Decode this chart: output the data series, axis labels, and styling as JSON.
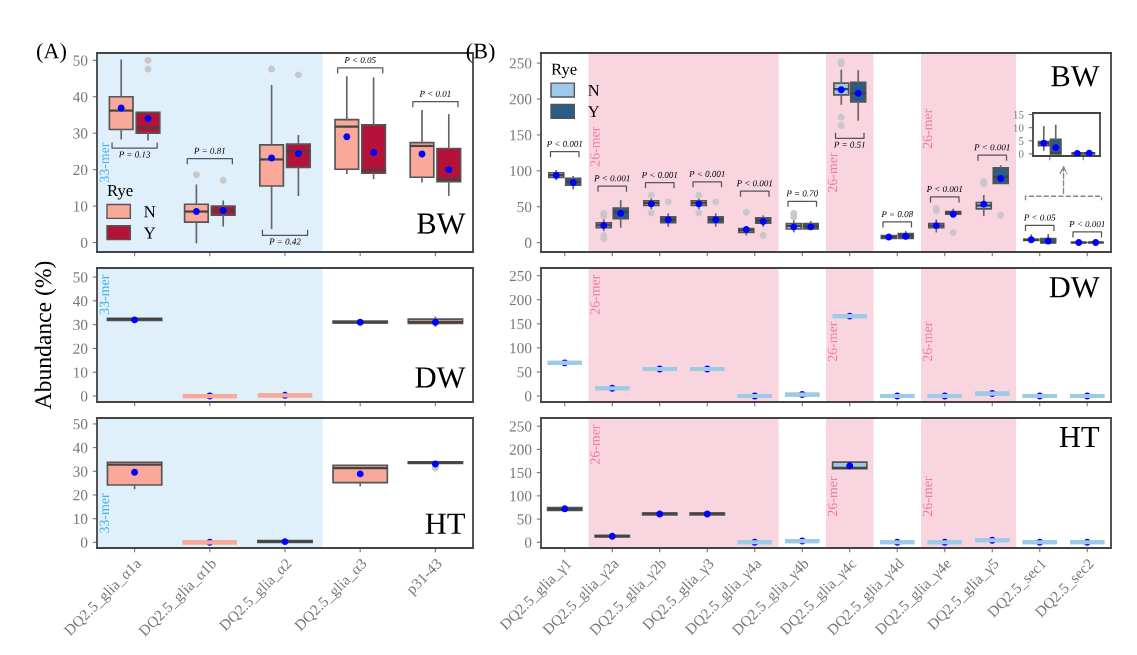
{
  "chart_data": [
    {
      "type": "box",
      "title": "BW",
      "annotations": [
        "(A)",
        "P = 0.13",
        "P = 0.81",
        "P = 0.42",
        "P < 0.05",
        "P < 0.01"
      ],
      "categories": [
        "DQ2.5_glia_α1a",
        "DQ2.5_glia_α1b",
        "DQ2.5_glia_α2",
        "DQ2.5_glia_α3",
        "p31-43"
      ],
      "ylim": [
        -2.6,
        52
      ],
      "yticks": [
        0,
        10,
        20,
        30,
        40,
        50
      ],
      "tick_labels": "y",
      "legend": "bottom left",
      "legend_title": "Rye",
      "bands": [
        {
          "axis": "x",
          "from": "DQ2.5_glia_α1a",
          "to": "DQ2.5_glia_α2",
          "label": "33-mer",
          "color": "#dff0fa"
        }
      ],
      "series": [
        {
          "name": "N",
          "color": "#f9a99a",
          "boxes": [
            {
              "low": 28.5,
              "q1": 31,
              "median": 36.2,
              "q3": 40,
              "high": 50,
              "mean": 36.9
            },
            {
              "low": 0,
              "q1": 5.6,
              "median": 8.5,
              "q3": 10.5,
              "high": 15.7,
              "mean": 8.5,
              "outliers": [
                18.6
              ]
            },
            {
              "low": 3.9,
              "q1": 15.5,
              "median": 22.8,
              "q3": 26.8,
              "high": 43,
              "mean": 23.2,
              "outliers": [
                47.6
              ]
            },
            {
              "low": 19,
              "q1": 20.1,
              "median": 31.8,
              "q3": 33.7,
              "high": 45.4,
              "mean": 29
            },
            {
              "low": 16.7,
              "q1": 17.9,
              "median": 26.5,
              "q3": 27.4,
              "high": 36.1,
              "mean": 24.3
            }
          ]
        },
        {
          "name": "Y",
          "color": "#b5123a",
          "boxes": [
            {
              "low": 28.2,
              "q1": 30,
              "median": 31.5,
              "q3": 35.7,
              "high": 35.7,
              "mean": 34,
              "outliers": [
                50,
                47.6
              ]
            },
            {
              "low": 4.6,
              "q1": 7.5,
              "median": 8.8,
              "q3": 10,
              "high": 11.3,
              "mean": 8.8,
              "outliers": [
                17.1
              ]
            },
            {
              "low": 13,
              "q1": 20.6,
              "median": 25,
              "q3": 27,
              "high": 29.3,
              "mean": 24.4,
              "outliers": [
                46
              ]
            },
            {
              "low": 17.6,
              "q1": 19,
              "median": 19.9,
              "q3": 32.3,
              "high": 45.1,
              "mean": 24.7
            },
            {
              "low": 13,
              "q1": 16.7,
              "median": 17.3,
              "q3": 25.8,
              "high": 35,
              "mean": 20
            }
          ]
        }
      ]
    },
    {
      "type": "box",
      "title": "DW",
      "ylabel": "Abundance (%)",
      "categories": [
        "DQ2.5_glia_α1a",
        "DQ2.5_glia_α1b",
        "DQ2.5_glia_α2",
        "DQ2.5_glia_α3",
        "p31-43"
      ],
      "ylim": [
        -2.5,
        53.8
      ],
      "yticks": [
        0,
        10,
        20,
        30,
        40,
        50
      ],
      "tick_labels": "y",
      "bands": [
        {
          "axis": "x",
          "from": "DQ2.5_glia_α1a",
          "to": "DQ2.5_glia_α2",
          "label": "33-mer",
          "color": "#dff0fa"
        }
      ],
      "series": [
        {
          "color": "#f9a99a",
          "boxes": [
            {
              "low": 31.8,
              "q1": 31.8,
              "median": 32.3,
              "q3": 32.6,
              "high": 32.6,
              "mean": 32
            },
            {
              "low": 0,
              "q1": 0,
              "median": 0,
              "q3": 0,
              "high": 0,
              "mean": 0
            },
            {
              "low": 0.3,
              "q1": 0.3,
              "median": 0.3,
              "q3": 0.3,
              "high": 0.3,
              "mean": 0.3
            },
            {
              "low": 30.7,
              "q1": 30.7,
              "median": 31,
              "q3": 31.5,
              "high": 31.5,
              "mean": 31
            },
            {
              "low": 29.5,
              "q1": 30.5,
              "median": 31.2,
              "q3": 32.3,
              "high": 33,
              "mean": 31
            }
          ]
        }
      ]
    },
    {
      "type": "box",
      "title": "HT",
      "categories": [
        "DQ2.5_glia_α1a",
        "DQ2.5_glia_α1b",
        "DQ2.5_glia_α2",
        "DQ2.5_glia_α3",
        "p31-43"
      ],
      "ylim": [
        -2.4,
        52.5
      ],
      "yticks": [
        0,
        10,
        20,
        30,
        40,
        50
      ],
      "bands": [
        {
          "axis": "x",
          "from": "DQ2.5_glia_α1a",
          "to": "DQ2.5_glia_α2",
          "label": "33-mer",
          "color": "#dff0fa"
        }
      ],
      "series": [
        {
          "color": "#f9a99a",
          "boxes": [
            {
              "low": 22.8,
              "q1": 24.2,
              "median": 32.8,
              "q3": 33.8,
              "high": 33.8,
              "mean": 29.6
            },
            {
              "low": 0,
              "q1": 0,
              "median": 0,
              "q3": 0,
              "high": 0,
              "mean": 0
            },
            {
              "low": 0,
              "q1": 0,
              "median": 0.4,
              "q3": 0.7,
              "high": 0.7,
              "mean": 0.3
            },
            {
              "low": 24,
              "q1": 25.2,
              "median": 31.3,
              "q3": 32.5,
              "high": 32.5,
              "mean": 28.9
            },
            {
              "low": 33.3,
              "q1": 33.3,
              "median": 33.7,
              "q3": 34,
              "high": 34,
              "mean": 33.1,
              "outliers": [
                31.4
              ]
            }
          ]
        }
      ]
    },
    {
      "type": "box",
      "title": "BW",
      "annotations": [
        "(B)",
        "P < 0.001",
        "P < 0.001",
        "P < 0.001",
        "P < 0.001",
        "P < 0.001",
        "P = 0.70",
        "P = 0.51",
        "P = 0.08",
        "P < 0.001",
        "P < 0.001",
        "P < 0.05",
        "P < 0.001"
      ],
      "categories": [
        "DQ2.5_glia_γ1",
        "DQ2.5_glia_γ2a",
        "DQ2.5_glia_γ2b",
        "DQ2.5_glia_γ3",
        "DQ2.5_glia_γ4a",
        "DQ2.5_glia_γ4b",
        "DQ2.5_glia_γ4c",
        "DQ2.5_glia_γ4d",
        "DQ2.5_glia_γ4e",
        "DQ2.5_glia_γ5",
        "DQ2.5_sec1",
        "DQ2.5_sec2"
      ],
      "ylim": [
        -13,
        264
      ],
      "yticks": [
        0,
        50,
        100,
        150,
        200,
        250
      ],
      "tick_labels": "y",
      "legend": "top left",
      "legend_title": "Rye",
      "bands": [
        {
          "axis": "x",
          "from": "DQ2.5_glia_γ2a",
          "to": "DQ2.5_glia_γ4a",
          "label": "26-mer",
          "color": "#f9d5e0"
        },
        {
          "axis": "x",
          "from": "DQ2.5_glia_γ4c",
          "to": "DQ2.5_glia_γ4c",
          "label": "26-mer",
          "color": "#f9d5e0"
        },
        {
          "axis": "x",
          "from": "DQ2.5_glia_γ4e",
          "to": "DQ2.5_glia_γ5",
          "label": "26-mer",
          "color": "#f9d5e0"
        }
      ],
      "series": [
        {
          "name": "N",
          "color": "#9ecae8",
          "boxes": [
            {
              "low": 88,
              "q1": 90.8,
              "median": 94,
              "q3": 97.3,
              "high": 100,
              "mean": 93.6
            },
            {
              "low": 17.2,
              "q1": 21,
              "median": 24.2,
              "q3": 27.5,
              "high": 33.5,
              "mean": 24,
              "outliers": [
                40.5,
                37,
                10,
                5.6
              ]
            },
            {
              "low": 47.5,
              "q1": 51.7,
              "median": 55,
              "q3": 58.2,
              "high": 62,
              "mean": 54,
              "outliers": [
                66,
                41.4
              ]
            },
            {
              "low": 47.5,
              "q1": 51.7,
              "median": 55,
              "q3": 58.2,
              "high": 62,
              "mean": 54,
              "outliers": [
                66,
                41.4
              ]
            },
            {
              "low": 11.2,
              "q1": 14.4,
              "median": 17.2,
              "q3": 19.5,
              "high": 21.9,
              "mean": 18.2,
              "outliers": [
                42.4
              ]
            },
            {
              "low": 15.4,
              "q1": 19,
              "median": 23.3,
              "q3": 26.5,
              "high": 31.2,
              "mean": 22,
              "outliers": [
                40.5,
                35.8
              ]
            },
            {
              "low": 193,
              "q1": 205.8,
              "median": 213.7,
              "q3": 222,
              "high": 239.7,
              "mean": 212.8,
              "outliers": [
                252,
                249,
                174.6,
                163
              ]
            },
            {
              "low": 6,
              "q1": 6,
              "median": 8,
              "q3": 9.8,
              "high": 9.8,
              "mean": 7.9
            },
            {
              "low": 15.4,
              "q1": 21,
              "median": 23.7,
              "q3": 26.5,
              "high": 31.2,
              "mean": 23.7,
              "outliers": [
                47.5,
                44.2
              ]
            },
            {
              "low": 38.2,
              "q1": 47,
              "median": 51.7,
              "q3": 55.9,
              "high": 65.2,
              "mean": 53.5,
              "outliers": [
                84.7,
                82.4
              ]
            },
            {
              "low": 1.5,
              "q1": 3.1,
              "median": 4,
              "q3": 4.7,
              "high": 10.3,
              "mean": 4.1
            },
            {
              "low": 0,
              "q1": 0,
              "median": 0.2,
              "q3": 0.3,
              "high": 0.3,
              "mean": 0.2
            }
          ]
        },
        {
          "name": "Y",
          "color": "#2b5b87",
          "boxes": [
            {
              "low": 75.4,
              "q1": 80,
              "median": 84.7,
              "q3": 89.4,
              "high": 91.7,
              "mean": 83.8
            },
            {
              "low": 21.9,
              "q1": 33.5,
              "median": 42.4,
              "q3": 48,
              "high": 58,
              "mean": 41
            },
            {
              "low": 23.3,
              "q1": 28,
              "median": 32,
              "q3": 35.8,
              "high": 39.6,
              "mean": 32,
              "outliers": [
                56.8
              ]
            },
            {
              "low": 23.3,
              "q1": 28,
              "median": 32,
              "q3": 35.8,
              "high": 39.6,
              "mean": 32,
              "outliers": [
                56.8
              ]
            },
            {
              "low": 23.3,
              "q1": 27,
              "median": 30.7,
              "q3": 34.4,
              "high": 36.8,
              "mean": 29.5,
              "outliers": [
                10.2
              ]
            },
            {
              "low": 19,
              "q1": 19,
              "median": 22.8,
              "q3": 26.5,
              "high": 28.9,
              "mean": 22
            },
            {
              "low": 171,
              "q1": 196,
              "median": 208,
              "q3": 223,
              "high": 239,
              "mean": 208
            },
            {
              "low": 6,
              "q1": 6,
              "median": 10.2,
              "q3": 12.6,
              "high": 14.9,
              "mean": 8.8
            },
            {
              "low": 39.6,
              "q1": 39.6,
              "median": 41.9,
              "q3": 43.3,
              "high": 46,
              "mean": 39.6,
              "outliers": [
                14
              ]
            },
            {
              "low": 82.4,
              "q1": 82.4,
              "median": 91.7,
              "q3": 104.3,
              "high": 106.6,
              "mean": 89.4,
              "outliers": [
                38.2
              ]
            },
            {
              "low": 0,
              "q1": 0,
              "median": 0.3,
              "q3": 5.6,
              "high": 10.8,
              "mean": 2.4
            },
            {
              "low": 0,
              "q1": 0,
              "median": 0.3,
              "q3": 0.4,
              "high": 0.4,
              "mean": 0.3
            }
          ]
        }
      ]
    },
    {
      "type": "box",
      "title": "DW",
      "categories": [
        "DQ2.5_glia_γ1",
        "DQ2.5_glia_γ2a",
        "DQ2.5_glia_γ2b",
        "DQ2.5_glia_γ3",
        "DQ2.5_glia_γ4a",
        "DQ2.5_glia_γ4b",
        "DQ2.5_glia_γ4c",
        "DQ2.5_glia_γ4d",
        "DQ2.5_glia_γ4e",
        "DQ2.5_glia_γ5",
        "DQ2.5_sec1",
        "DQ2.5_sec2"
      ],
      "ylim": [
        -12.5,
        266
      ],
      "yticks": [
        0,
        50,
        100,
        150,
        200,
        250
      ],
      "tick_labels": "y",
      "bands": [
        {
          "axis": "x",
          "from": "DQ2.5_glia_γ2a",
          "to": "DQ2.5_glia_γ4a",
          "label": "26-mer",
          "color": "#f9d5e0"
        },
        {
          "axis": "x",
          "from": "DQ2.5_glia_γ4c",
          "to": "DQ2.5_glia_γ4c",
          "label": "26-mer",
          "color": "#f9d5e0"
        },
        {
          "axis": "x",
          "from": "DQ2.5_glia_γ4e",
          "to": "DQ2.5_glia_γ5",
          "label": "26-mer",
          "color": "#f9d5e0"
        }
      ],
      "series": [
        {
          "color": "#9ecae8",
          "boxes": [
            {
              "low": 68.8,
              "q1": 68.8,
              "median": 68.8,
              "q3": 68.8,
              "high": 68.8,
              "mean": 68.8
            },
            {
              "low": 16,
              "q1": 16,
              "median": 16,
              "q3": 16,
              "high": 16,
              "mean": 16
            },
            {
              "low": 56,
              "q1": 56,
              "median": 56,
              "q3": 56,
              "high": 56,
              "mean": 56
            },
            {
              "low": 56,
              "q1": 56,
              "median": 56,
              "q3": 56,
              "high": 56,
              "mean": 56
            },
            {
              "low": 0,
              "q1": 0,
              "median": 0,
              "q3": 0,
              "high": 0,
              "mean": 0
            },
            {
              "low": 3,
              "q1": 3,
              "median": 3,
              "q3": 3,
              "high": 3,
              "mean": 3
            },
            {
              "low": 166,
              "q1": 166,
              "median": 166,
              "q3": 166,
              "high": 166,
              "mean": 166
            },
            {
              "low": 0,
              "q1": 0,
              "median": 0,
              "q3": 0,
              "high": 0,
              "mean": 0
            },
            {
              "low": 0,
              "q1": 0,
              "median": 0,
              "q3": 0,
              "high": 0,
              "mean": 0
            },
            {
              "low": 5,
              "q1": 5,
              "median": 5,
              "q3": 5,
              "high": 5,
              "mean": 5
            },
            {
              "low": 0,
              "q1": 0,
              "median": 0,
              "q3": 0,
              "high": 0,
              "mean": 0
            },
            {
              "low": 0,
              "q1": 0,
              "median": 0,
              "q3": 0,
              "high": 0,
              "mean": 0
            }
          ]
        }
      ]
    },
    {
      "type": "box",
      "title": "HT",
      "categories": [
        "DQ2.5_glia_γ1",
        "DQ2.5_glia_γ2a",
        "DQ2.5_glia_γ2b",
        "DQ2.5_glia_γ3",
        "DQ2.5_glia_γ4a",
        "DQ2.5_glia_γ4b",
        "DQ2.5_glia_γ4c",
        "DQ2.5_glia_γ4d",
        "DQ2.5_glia_γ4e",
        "DQ2.5_glia_γ5",
        "DQ2.5_sec1",
        "DQ2.5_sec2"
      ],
      "ylim": [
        -12.3,
        267.6
      ],
      "yticks": [
        0,
        50,
        100,
        150,
        200,
        250
      ],
      "bands": [
        {
          "axis": "x",
          "from": "DQ2.5_glia_γ2a",
          "to": "DQ2.5_glia_γ4a",
          "label": "26-mer",
          "color": "#f9d5e0"
        },
        {
          "axis": "x",
          "from": "DQ2.5_glia_γ4c",
          "to": "DQ2.5_glia_γ4c",
          "label": "26-mer",
          "color": "#f9d5e0"
        },
        {
          "axis": "x",
          "from": "DQ2.5_glia_γ4e",
          "to": "DQ2.5_glia_γ5",
          "label": "26-mer",
          "color": "#f9d5e0"
        }
      ],
      "series": [
        {
          "color": "#9ecae8",
          "boxes": [
            {
              "low": 68.7,
              "q1": 68.7,
              "median": 71.3,
              "q3": 74.8,
              "high": 74.8,
              "mean": 72
            },
            {
              "low": 11.4,
              "q1": 11.4,
              "median": 13.2,
              "q3": 15,
              "high": 15,
              "mean": 13
            },
            {
              "low": 59,
              "q1": 59,
              "median": 61.6,
              "q3": 63,
              "high": 63,
              "mean": 61
            },
            {
              "low": 59,
              "q1": 59,
              "median": 61.6,
              "q3": 63,
              "high": 63,
              "mean": 61
            },
            {
              "low": 0,
              "q1": 0,
              "median": 0,
              "q3": 0,
              "high": 0,
              "mean": 0
            },
            {
              "low": 2.6,
              "q1": 2.6,
              "median": 2.6,
              "q3": 2.6,
              "high": 2.6,
              "mean": 2.6
            },
            {
              "low": 158.5,
              "q1": 158.5,
              "median": 160,
              "q3": 172.5,
              "high": 172.5,
              "mean": 164.6
            },
            {
              "low": 0,
              "q1": 0,
              "median": 0,
              "q3": 0,
              "high": 0,
              "mean": 0
            },
            {
              "low": 0,
              "q1": 0,
              "median": 0,
              "q3": 0,
              "high": 0,
              "mean": 0
            },
            {
              "low": 4.4,
              "q1": 4.4,
              "median": 4.4,
              "q3": 4.4,
              "high": 4.4,
              "mean": 4.4
            },
            {
              "low": 0,
              "q1": 0,
              "median": 0,
              "q3": 0,
              "high": 0,
              "mean": 0
            },
            {
              "low": 0,
              "q1": 0,
              "median": 0,
              "q3": 0,
              "high": 0,
              "mean": 0
            }
          ]
        }
      ]
    },
    {
      "type": "box",
      "categories": [
        null,
        null
      ],
      "ylim": [
        -0.8,
        15.6
      ],
      "yticks": [
        0,
        5,
        10,
        15
      ],
      "tick_labels": "y",
      "series": [
        {
          "color": "#9ecae8",
          "boxes": [
            {
              "low": 1.5,
              "q1": 3.1,
              "median": 4,
              "q3": 4.7,
              "high": 10.3,
              "mean": 4.1
            },
            {
              "low": 0,
              "q1": 0,
              "median": 0.2,
              "q3": 0.3,
              "high": 0.3,
              "mean": 0.2
            }
          ]
        },
        {
          "color": "#2b5b87",
          "boxes": [
            {
              "low": 0,
              "q1": 0,
              "median": 0.3,
              "q3": 5.6,
              "high": 10.8,
              "mean": 2.4
            },
            {
              "low": 0,
              "q1": 0,
              "median": 0.3,
              "q3": 0.4,
              "high": 0.4,
              "mean": 0.3
            }
          ]
        }
      ]
    }
  ]
}
